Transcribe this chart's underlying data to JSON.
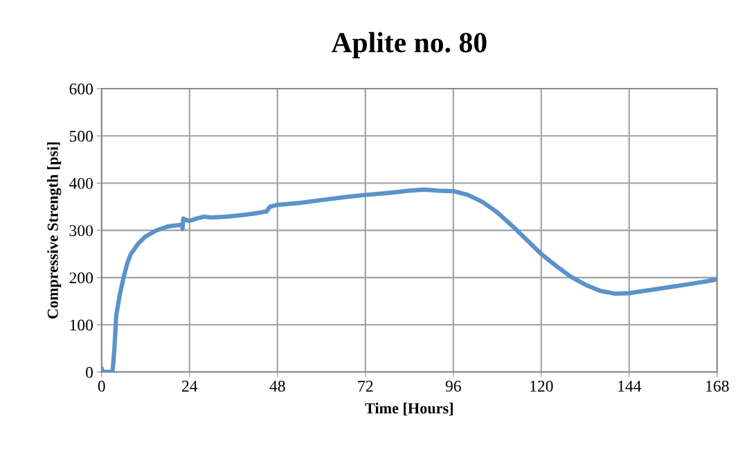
{
  "chart_data": {
    "type": "line",
    "title": "Aplite no. 80",
    "xlabel": "Time [Hours]",
    "ylabel": "Compressive Strength [psi]",
    "x": [
      0,
      0.3,
      3,
      3.5,
      4,
      5,
      6,
      7,
      8,
      10,
      12,
      15,
      18,
      21,
      22,
      22.1,
      22.3,
      23,
      24,
      26,
      28,
      30,
      34,
      38,
      42,
      45,
      46,
      48,
      54,
      60,
      66,
      72,
      78,
      84,
      88,
      92,
      96,
      100,
      104,
      108,
      112,
      116,
      120,
      124,
      128,
      132,
      136,
      140,
      144,
      150,
      156,
      162,
      168
    ],
    "series": [
      {
        "color": "#5b93c9",
        "values": [
          8,
          0,
          0,
          50,
          120,
          165,
          200,
          230,
          250,
          272,
          287,
          300,
          308,
          311,
          312,
          303,
          325,
          322,
          320,
          325,
          329,
          327,
          329,
          332,
          336,
          340,
          350,
          354,
          358,
          364,
          370,
          375,
          379,
          384,
          386,
          384,
          383,
          375,
          360,
          338,
          310,
          280,
          250,
          225,
          202,
          185,
          172,
          166,
          167,
          174,
          181,
          188,
          196
        ]
      }
    ],
    "xlim": [
      0,
      168
    ],
    "xticks": [
      0,
      24,
      48,
      72,
      96,
      120,
      144,
      168
    ],
    "ylim": [
      0,
      600
    ],
    "yticks": [
      0,
      100,
      200,
      300,
      400,
      500,
      600
    ],
    "grid": true,
    "marker": "none",
    "line_style": "solid"
  }
}
